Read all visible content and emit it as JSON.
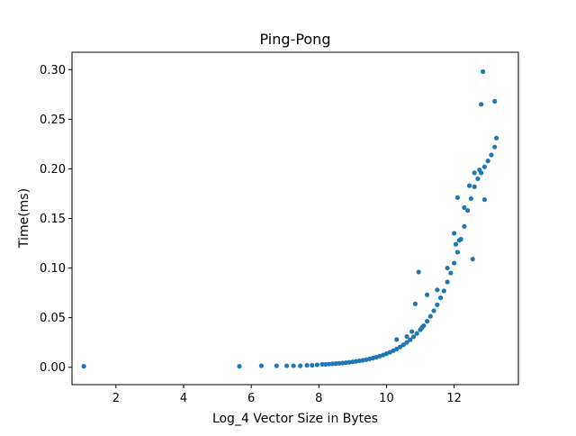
{
  "figure": {
    "background": "#ffffff"
  },
  "chart_data": {
    "type": "scatter",
    "title": "Ping-Pong",
    "xlabel": "Log_4 Vector Size in Bytes",
    "ylabel": "Time(ms)",
    "xlim": [
      0.7,
      13.9
    ],
    "ylim": [
      -0.0175,
      0.3175
    ],
    "xticks": [
      2,
      4,
      6,
      8,
      10,
      12
    ],
    "xtick_labels": [
      "2",
      "4",
      "6",
      "8",
      "10",
      "12"
    ],
    "yticks": [
      0.0,
      0.05,
      0.1,
      0.15,
      0.2,
      0.25,
      0.3
    ],
    "ytick_labels": [
      "0.00",
      "0.05",
      "0.10",
      "0.15",
      "0.20",
      "0.25",
      "0.30"
    ],
    "grid": false,
    "legend": "none",
    "marker_color": "#1f77b4",
    "series": [
      {
        "points": [
          [
            1.05,
            0.001
          ],
          [
            5.65,
            0.001
          ],
          [
            6.3,
            0.0015
          ],
          [
            6.75,
            0.0015
          ],
          [
            7.05,
            0.0015
          ],
          [
            7.25,
            0.0015
          ],
          [
            7.45,
            0.0015
          ],
          [
            7.65,
            0.002
          ],
          [
            7.8,
            0.002
          ],
          [
            7.95,
            0.0025
          ],
          [
            8.1,
            0.003
          ],
          [
            8.2,
            0.003
          ],
          [
            8.3,
            0.0032
          ],
          [
            8.4,
            0.0035
          ],
          [
            8.5,
            0.0037
          ],
          [
            8.6,
            0.004
          ],
          [
            8.7,
            0.0043
          ],
          [
            8.8,
            0.0047
          ],
          [
            8.9,
            0.005
          ],
          [
            9.0,
            0.0055
          ],
          [
            9.1,
            0.006
          ],
          [
            9.2,
            0.0065
          ],
          [
            9.3,
            0.007
          ],
          [
            9.4,
            0.0077
          ],
          [
            9.5,
            0.0085
          ],
          [
            9.6,
            0.0093
          ],
          [
            9.7,
            0.0102
          ],
          [
            9.8,
            0.0112
          ],
          [
            9.9,
            0.0124
          ],
          [
            10.0,
            0.0137
          ],
          [
            10.1,
            0.0151
          ],
          [
            10.2,
            0.0167
          ],
          [
            10.3,
            0.0185
          ],
          [
            10.4,
            0.0205
          ],
          [
            10.5,
            0.0227
          ],
          [
            10.6,
            0.0251
          ],
          [
            10.7,
            0.0278
          ],
          [
            10.8,
            0.0308
          ],
          [
            10.9,
            0.0341
          ],
          [
            11.0,
            0.0378
          ],
          [
            11.1,
            0.0419
          ],
          [
            11.2,
            0.0464
          ],
          [
            11.3,
            0.0514
          ],
          [
            11.4,
            0.057
          ],
          [
            11.5,
            0.063
          ],
          [
            11.6,
            0.07
          ],
          [
            11.7,
            0.077
          ],
          [
            11.8,
            0.086
          ],
          [
            11.9,
            0.095
          ],
          [
            12.0,
            0.105
          ],
          [
            12.1,
            0.116
          ],
          [
            12.2,
            0.129
          ],
          [
            12.3,
            0.142
          ],
          [
            12.4,
            0.158
          ],
          [
            12.5,
            0.17
          ],
          [
            12.6,
            0.182
          ],
          [
            12.7,
            0.19
          ],
          [
            12.8,
            0.196
          ],
          [
            12.9,
            0.202
          ],
          [
            13.0,
            0.208
          ],
          [
            13.1,
            0.214
          ],
          [
            13.2,
            0.222
          ],
          [
            13.25,
            0.231
          ],
          [
            10.3,
            0.028
          ],
          [
            10.6,
            0.031
          ],
          [
            10.75,
            0.036
          ],
          [
            10.85,
            0.064
          ],
          [
            10.95,
            0.096
          ],
          [
            11.05,
            0.04
          ],
          [
            11.2,
            0.073
          ],
          [
            11.5,
            0.078
          ],
          [
            11.8,
            0.1
          ],
          [
            12.0,
            0.135
          ],
          [
            12.05,
            0.124
          ],
          [
            12.1,
            0.171
          ],
          [
            12.15,
            0.128
          ],
          [
            12.3,
            0.161
          ],
          [
            12.45,
            0.183
          ],
          [
            12.6,
            0.196
          ],
          [
            12.75,
            0.199
          ],
          [
            12.8,
            0.265
          ],
          [
            12.85,
            0.298
          ],
          [
            13.2,
            0.268
          ],
          [
            12.55,
            0.109
          ],
          [
            12.9,
            0.169
          ]
        ]
      }
    ]
  }
}
